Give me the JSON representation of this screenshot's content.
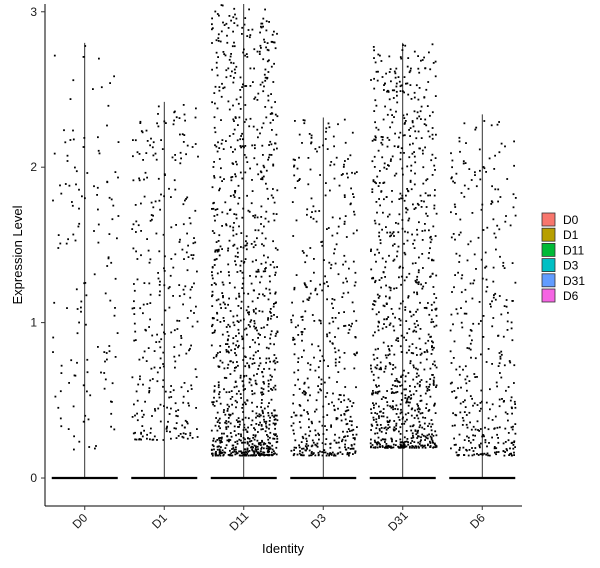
{
  "chart_data": {
    "type": "violin",
    "title": "",
    "xlabel": "Identity",
    "ylabel": "Expression Level",
    "ylim": [
      -0.18,
      3.05
    ],
    "yticks": [
      0,
      1,
      2,
      3
    ],
    "categories": [
      "D0",
      "D1",
      "D11",
      "D3",
      "D31",
      "D6"
    ],
    "series": [
      {
        "name": "D0",
        "color": "#F8766D",
        "max": 2.8,
        "nonzero_points": 140,
        "nonzero_min": 0.18,
        "nonzero_mean": 1.3
      },
      {
        "name": "D1",
        "color": "#B79F00",
        "max": 2.42,
        "nonzero_points": 330,
        "nonzero_min": 0.25,
        "nonzero_mean": 1.0
      },
      {
        "name": "D11",
        "color": "#00BA38",
        "max": 3.05,
        "nonzero_points": 1100,
        "nonzero_min": 0.15,
        "nonzero_mean": 0.55
      },
      {
        "name": "D3",
        "color": "#00BFC4",
        "max": 2.32,
        "nonzero_points": 480,
        "nonzero_min": 0.15,
        "nonzero_mean": 0.65
      },
      {
        "name": "D31",
        "color": "#619CFF",
        "max": 2.8,
        "nonzero_points": 950,
        "nonzero_min": 0.2,
        "nonzero_mean": 0.75
      },
      {
        "name": "D6",
        "color": "#F564E3",
        "max": 2.34,
        "nonzero_points": 380,
        "nonzero_min": 0.15,
        "nonzero_mean": 0.7
      }
    ],
    "legend": {
      "position": "right",
      "entries": [
        "D0",
        "D1",
        "D11",
        "D3",
        "D31",
        "D6"
      ]
    },
    "grid": false
  }
}
